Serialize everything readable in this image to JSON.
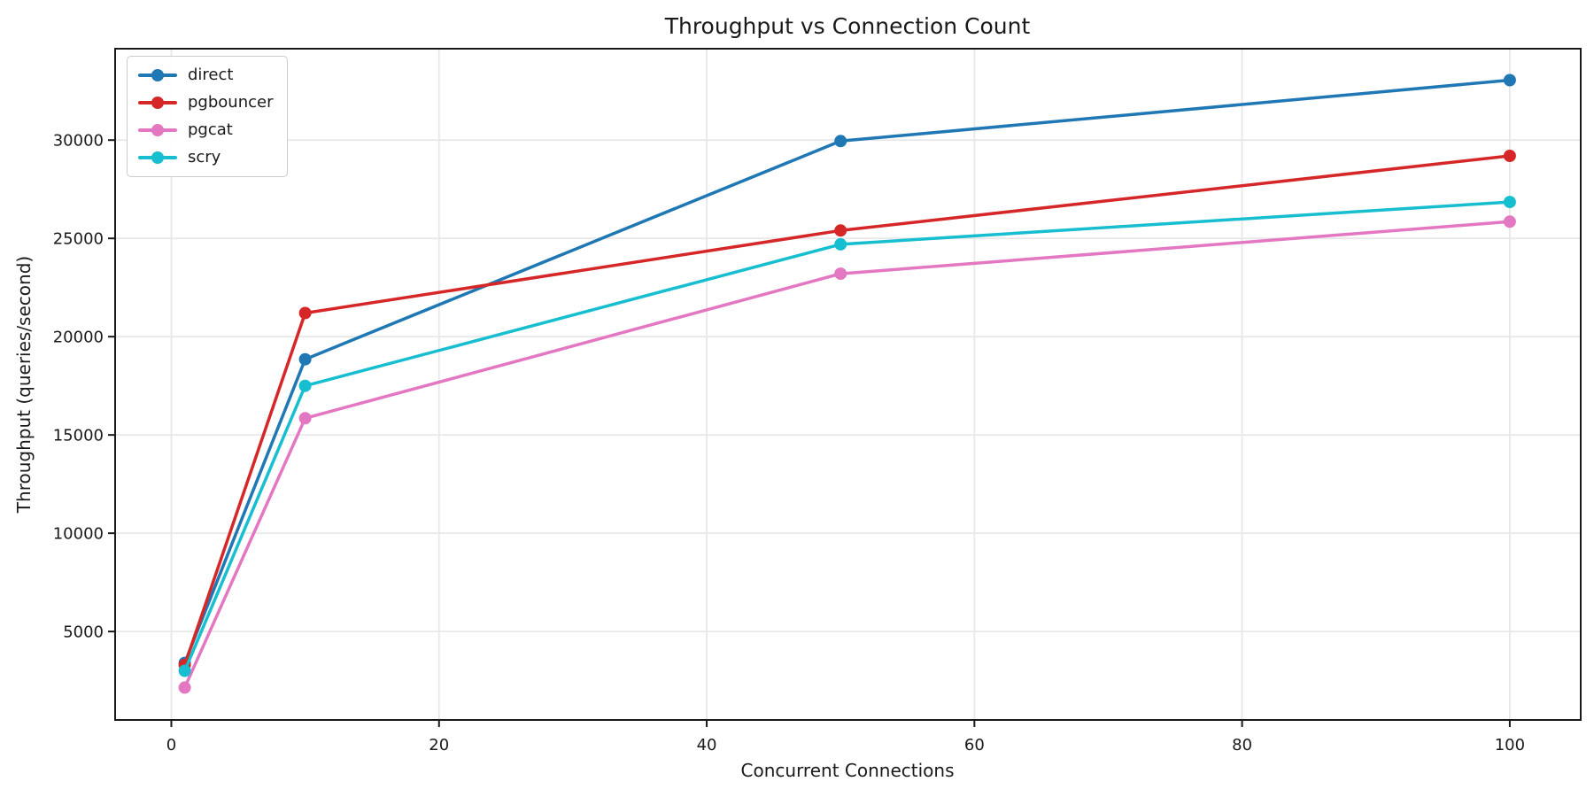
{
  "chart_data": {
    "type": "line",
    "title": "Throughput vs Connection Count",
    "xlabel": "Concurrent Connections",
    "ylabel": "Throughput (queries/second)",
    "x": [
      1,
      10,
      50,
      100
    ],
    "series": [
      {
        "name": "direct",
        "color": "#1f77b4",
        "values": [
          3400,
          18850,
          29950,
          33050
        ]
      },
      {
        "name": "pgbouncer",
        "color": "#d62728",
        "values": [
          3300,
          21200,
          25400,
          29200
        ]
      },
      {
        "name": "pgcat",
        "color": "#e377c2",
        "values": [
          2150,
          15850,
          23200,
          25850
        ]
      },
      {
        "name": "scry",
        "color": "#17becf",
        "values": [
          3000,
          17500,
          24700,
          26850
        ]
      }
    ],
    "xticks": [
      0,
      20,
      40,
      60,
      80,
      100
    ],
    "yticks": [
      5000,
      10000,
      15000,
      20000,
      25000,
      30000
    ],
    "xlim": [
      -4.2,
      105.3
    ],
    "ylim": [
      500,
      34650
    ],
    "grid": true,
    "legend_position": "upper left",
    "background_color": "#ffffff",
    "grid_color": "#e8e8e8",
    "text_color": "#1a1a1a"
  }
}
